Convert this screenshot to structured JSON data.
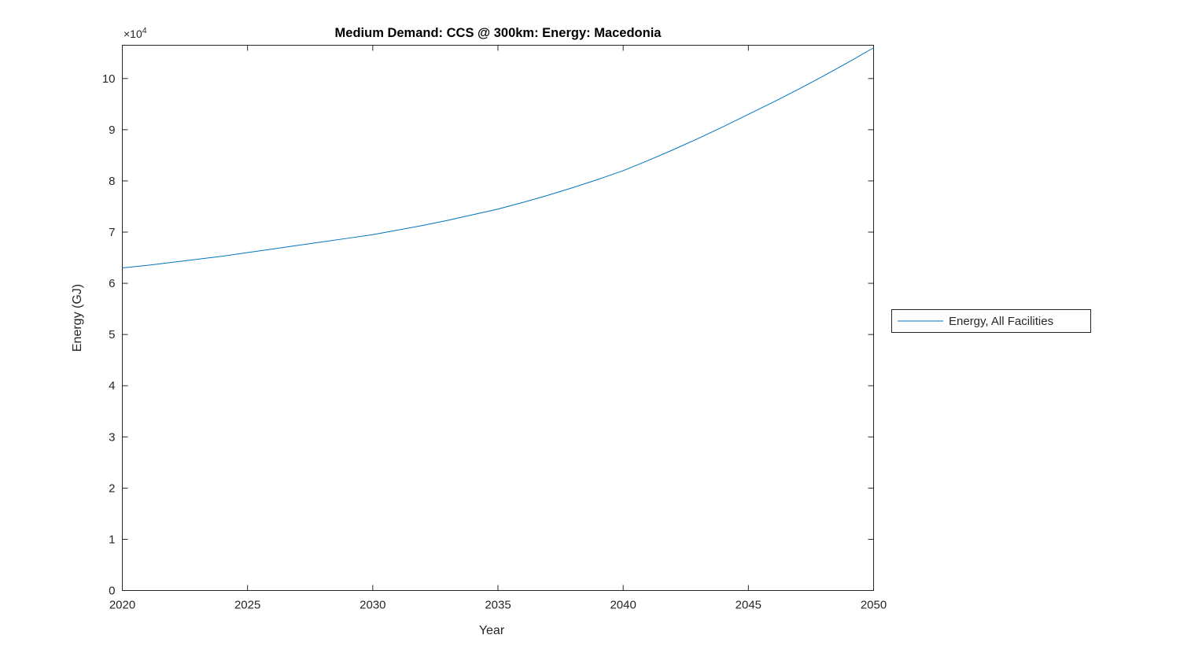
{
  "figure": {
    "background": "#ffffff",
    "axis_color": "#262626"
  },
  "chart_data": {
    "type": "line",
    "title": "Medium Demand: CCS @ 300km: Energy: Macedonia",
    "xlabel": "Year",
    "ylabel": "Energy (GJ)",
    "y_multiplier_label": "×10",
    "y_multiplier_exp": "4",
    "y_units_note": "values are in units of 10^4 GJ",
    "xlim": [
      2020,
      2050
    ],
    "ylim": [
      0,
      10.65
    ],
    "xticks": [
      2020,
      2025,
      2030,
      2035,
      2040,
      2045,
      2050
    ],
    "yticks": [
      0,
      1,
      2,
      3,
      4,
      5,
      6,
      7,
      8,
      9,
      10
    ],
    "grid": false,
    "legend_position": "right-outside",
    "x": [
      2020,
      2021,
      2022,
      2023,
      2024,
      2025,
      2026,
      2027,
      2028,
      2029,
      2030,
      2031,
      2032,
      2033,
      2034,
      2035,
      2036,
      2037,
      2038,
      2039,
      2040,
      2041,
      2042,
      2043,
      2044,
      2045,
      2046,
      2047,
      2048,
      2049,
      2050
    ],
    "series": [
      {
        "name": "Energy, All Facilities",
        "color": "#0072BD",
        "values": [
          6.3,
          6.35,
          6.41,
          6.47,
          6.53,
          6.6,
          6.67,
          6.74,
          6.81,
          6.88,
          6.95,
          7.04,
          7.13,
          7.23,
          7.34,
          7.45,
          7.58,
          7.72,
          7.87,
          8.03,
          8.2,
          8.4,
          8.61,
          8.83,
          9.06,
          9.3,
          9.54,
          9.79,
          10.05,
          10.32,
          10.6
        ]
      }
    ]
  },
  "legend": {
    "entries": [
      {
        "label": "Energy, All Facilities",
        "color": "#0072BD"
      }
    ]
  }
}
